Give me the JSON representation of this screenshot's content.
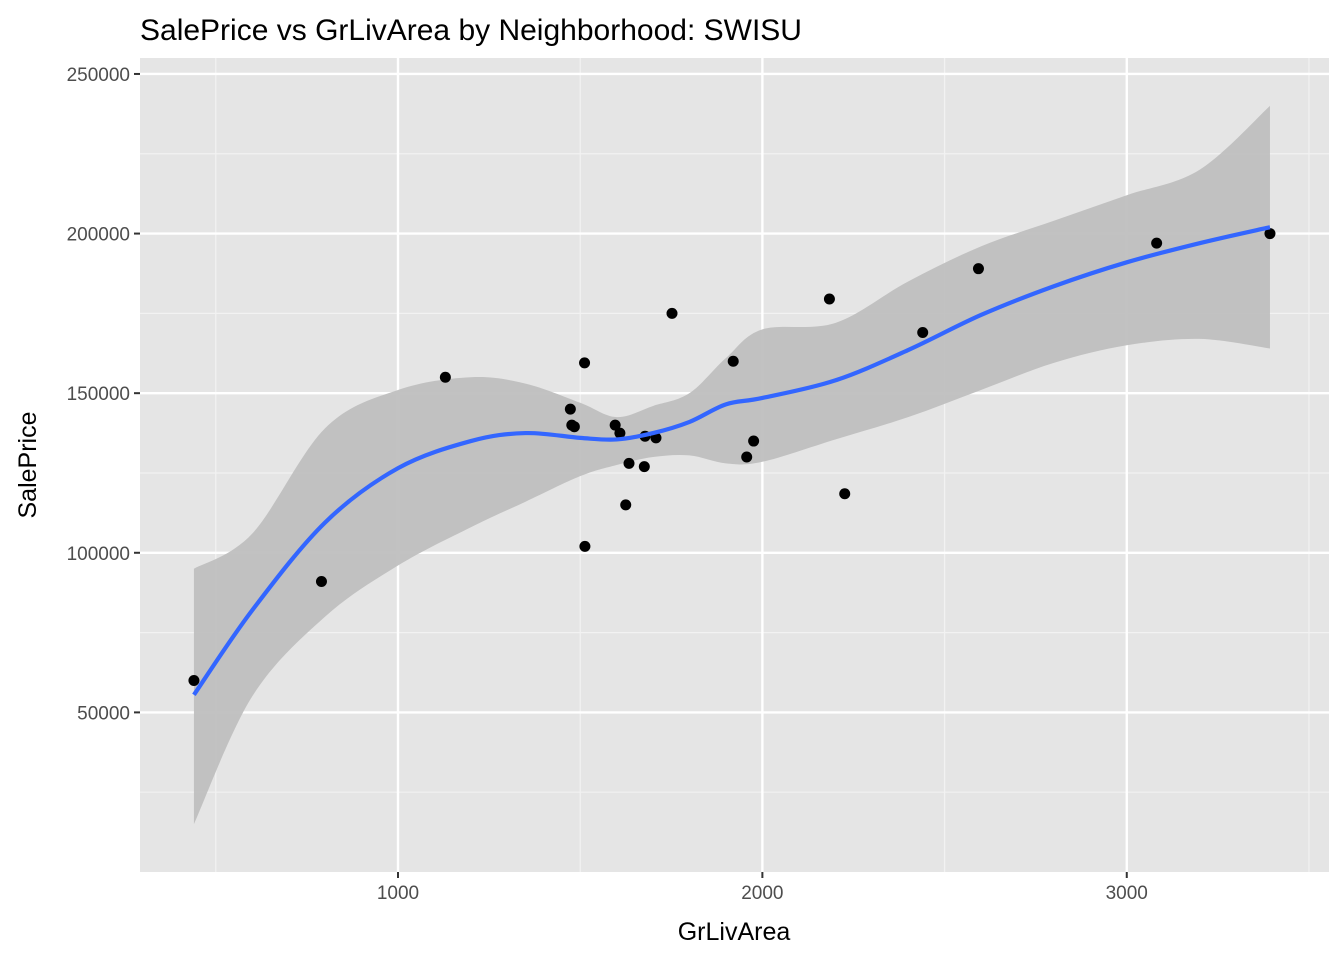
{
  "chart_data": {
    "type": "scatter",
    "title": "SalePrice vs GrLivArea by Neighborhood: SWISU",
    "xlabel": "GrLivArea",
    "ylabel": "SalePrice",
    "xlim": [
      292,
      3555
    ],
    "ylim": [
      0,
      255000
    ],
    "x_ticks": [
      1000,
      2000,
      3000
    ],
    "y_ticks": [
      50000,
      100000,
      150000,
      200000,
      250000
    ],
    "grid": true,
    "background": "#e5e5e5",
    "point_color": "#000000",
    "smooth_color": "#3366ff",
    "ribbon_color": "#bfbfbf",
    "points": [
      {
        "x": 440,
        "y": 60000
      },
      {
        "x": 790,
        "y": 91000
      },
      {
        "x": 1130,
        "y": 155000
      },
      {
        "x": 1473,
        "y": 145000
      },
      {
        "x": 1477,
        "y": 140000
      },
      {
        "x": 1484,
        "y": 139500
      },
      {
        "x": 1512,
        "y": 159500
      },
      {
        "x": 1513,
        "y": 102000
      },
      {
        "x": 1596,
        "y": 140000
      },
      {
        "x": 1609,
        "y": 137500
      },
      {
        "x": 1625,
        "y": 115000
      },
      {
        "x": 1634,
        "y": 128000
      },
      {
        "x": 1676,
        "y": 127000
      },
      {
        "x": 1678,
        "y": 136500
      },
      {
        "x": 1708,
        "y": 136000
      },
      {
        "x": 1752,
        "y": 175000
      },
      {
        "x": 1920,
        "y": 160000
      },
      {
        "x": 1957,
        "y": 130000
      },
      {
        "x": 1976,
        "y": 135000
      },
      {
        "x": 2184,
        "y": 179500
      },
      {
        "x": 2226,
        "y": 118500
      },
      {
        "x": 2440,
        "y": 169000
      },
      {
        "x": 2593,
        "y": 189000
      },
      {
        "x": 3082,
        "y": 197000
      },
      {
        "x": 3393,
        "y": 200000
      }
    ],
    "smooth": {
      "x": [
        440,
        600,
        800,
        1000,
        1200,
        1350,
        1500,
        1600,
        1700,
        1800,
        1900,
        2000,
        2200,
        2400,
        2600,
        2800,
        3000,
        3200,
        3393
      ],
      "y": [
        55500,
        82000,
        109500,
        126500,
        135000,
        137500,
        136000,
        135500,
        137500,
        141000,
        146500,
        148500,
        154000,
        163500,
        174500,
        183500,
        191000,
        197000,
        202000
      ],
      "lower": [
        15000,
        55000,
        80000,
        96000,
        108000,
        116000,
        124000,
        127500,
        130000,
        130500,
        128000,
        128500,
        135500,
        142500,
        151000,
        159500,
        165000,
        167000,
        164000
      ],
      "upper": [
        95000,
        106000,
        139000,
        151000,
        155000,
        153000,
        147000,
        142500,
        146000,
        150000,
        161000,
        170000,
        172000,
        185000,
        196000,
        204000,
        212000,
        220000,
        240000
      ]
    }
  }
}
